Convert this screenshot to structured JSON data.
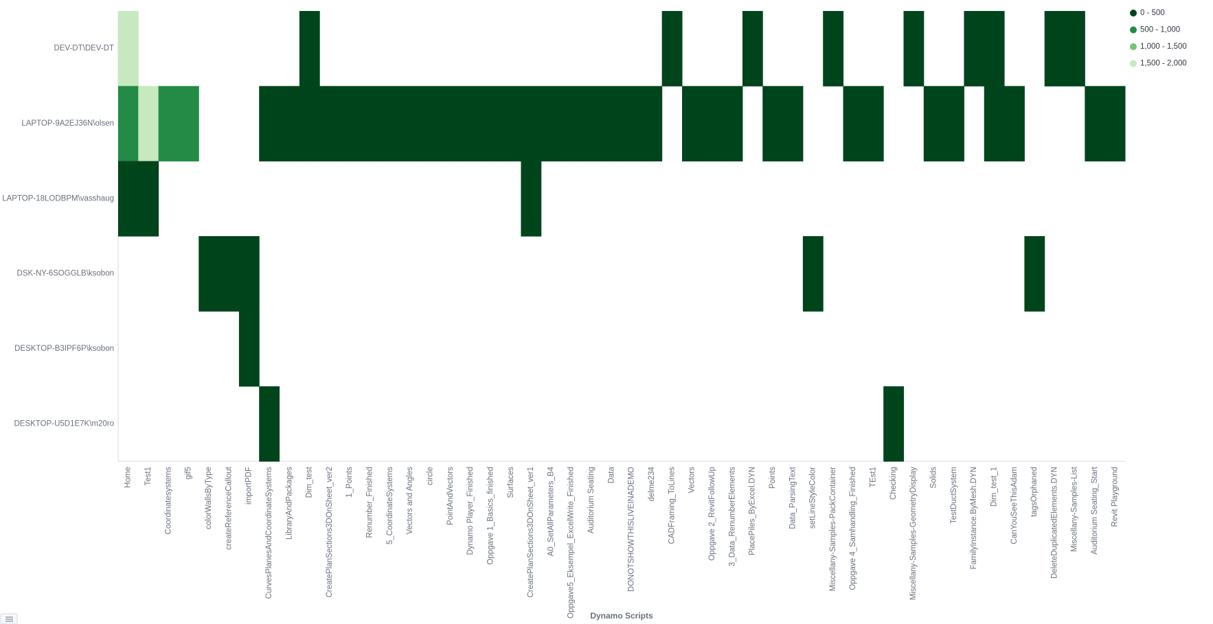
{
  "chart_data": {
    "type": "heatmap",
    "x_axis_label": "Dynamo Scripts",
    "categories": [
      "Home",
      "Test1",
      "Coordinatesystems",
      "gif5",
      "colorWallsByType",
      "createReferenceCallout",
      "importPDF",
      "CurvesPlanesAndCoordinateSystems",
      "LibraryAndPackages",
      "Dim_test",
      "CreatePlanSections3DOnSheet_ver2",
      "1_Points",
      "Renumber_Finished",
      "5_CoordinateSystems",
      "Vectors and Angles",
      "circle",
      "PointAndVectors",
      "Dynamo Player_Finished",
      "Oppgave 1_Basics_finished",
      "Surfaces",
      "CreatePlanSections3DOnSheet_ver1",
      "A0_SetAllParameters_B4",
      "Oppgave5_Eksempel_ExcelWrite_Finished",
      "Auditorium Seating",
      "Data",
      "DONOTSHOWTHISLIVEINADEMO",
      "delme234",
      "CADFraming_ToLines",
      "Vectors",
      "Oppgave 2_RevitFollowUp",
      "3_Data_RenumberElements",
      "PlacePiles_ByExcel.DYN",
      "Points",
      "Data_ParsingText",
      "setLineStyleColor",
      "Miscellany-Samples-PackContainer",
      "Oppgave 4_Samhandling_Finished",
      "TEst1",
      "Checking",
      "Miscellany-Samples-GeometryDisplay",
      "Solids",
      "TestDuctSystem",
      "FamilyInstance.ByMesh.DYN",
      "Dim_test_1",
      "CanYouSeeThisAdam",
      "tagsOrphaned",
      "DeleteDuplicatedElements.DYN",
      "Miscellany-Samples-List",
      "Auditorium Seating_Start",
      "Revit Playground"
    ],
    "rows": [
      "DEV-DT\\DEV-DT",
      "LAPTOP-9A2EJ36N\\olsen",
      "LAPTOP-18LODBPM\\vasshaug",
      "DSK-NY-6SOGGLB\\ksobon",
      "DESKTOP-B3IPF6P\\ksobon",
      "DESKTOP-U5D1E7K\\m20ro"
    ],
    "values": [
      [
        1750,
        null,
        null,
        null,
        null,
        null,
        null,
        null,
        null,
        250,
        null,
        null,
        null,
        null,
        null,
        null,
        null,
        null,
        null,
        null,
        null,
        null,
        null,
        null,
        null,
        null,
        null,
        250,
        null,
        null,
        null,
        250,
        null,
        null,
        null,
        250,
        null,
        null,
        null,
        250,
        null,
        null,
        250,
        250,
        null,
        null,
        250,
        250,
        null,
        null
      ],
      [
        750,
        1750,
        750,
        750,
        null,
        null,
        null,
        250,
        250,
        250,
        250,
        250,
        250,
        250,
        250,
        250,
        250,
        250,
        250,
        250,
        250,
        250,
        250,
        250,
        250,
        250,
        250,
        null,
        250,
        250,
        250,
        null,
        250,
        250,
        null,
        null,
        250,
        250,
        null,
        null,
        250,
        250,
        null,
        250,
        250,
        null,
        null,
        null,
        250,
        250
      ],
      [
        250,
        250,
        null,
        null,
        null,
        null,
        null,
        null,
        null,
        null,
        null,
        null,
        null,
        null,
        null,
        null,
        null,
        null,
        null,
        null,
        250,
        null,
        null,
        null,
        null,
        null,
        null,
        null,
        null,
        null,
        null,
        null,
        null,
        null,
        null,
        null,
        null,
        null,
        null,
        null,
        null,
        null,
        null,
        null,
        null,
        null,
        null,
        null,
        null,
        null
      ],
      [
        null,
        null,
        null,
        null,
        250,
        250,
        250,
        null,
        null,
        null,
        null,
        null,
        null,
        null,
        null,
        null,
        null,
        null,
        null,
        null,
        null,
        null,
        null,
        null,
        null,
        null,
        null,
        null,
        null,
        null,
        null,
        null,
        null,
        null,
        250,
        null,
        null,
        null,
        null,
        null,
        null,
        null,
        null,
        null,
        null,
        250,
        null,
        null,
        null,
        null
      ],
      [
        null,
        null,
        null,
        null,
        null,
        null,
        250,
        null,
        null,
        null,
        null,
        null,
        null,
        null,
        null,
        null,
        null,
        null,
        null,
        null,
        null,
        null,
        null,
        null,
        null,
        null,
        null,
        null,
        null,
        null,
        null,
        null,
        null,
        null,
        null,
        null,
        null,
        null,
        null,
        null,
        null,
        null,
        null,
        null,
        null,
        null,
        null,
        null,
        null,
        null
      ],
      [
        null,
        null,
        null,
        null,
        null,
        null,
        null,
        250,
        null,
        null,
        null,
        null,
        null,
        null,
        null,
        null,
        null,
        null,
        null,
        null,
        null,
        null,
        null,
        null,
        null,
        null,
        null,
        null,
        null,
        null,
        null,
        null,
        null,
        null,
        null,
        null,
        null,
        null,
        250,
        null,
        null,
        null,
        null,
        null,
        null,
        null,
        null,
        null,
        null,
        null
      ]
    ],
    "legend": [
      {
        "label": "0 - 500",
        "from": 0,
        "to": 500,
        "color": "#00441b"
      },
      {
        "label": "500 - 1,000",
        "from": 500,
        "to": 1000,
        "color": "#238b45"
      },
      {
        "label": "1,000 - 1,500",
        "from": 1000,
        "to": 1500,
        "color": "#74c476"
      },
      {
        "label": "1,500 - 2,000",
        "from": 1500,
        "to": 2000,
        "color": "#c7e9c0"
      }
    ]
  }
}
